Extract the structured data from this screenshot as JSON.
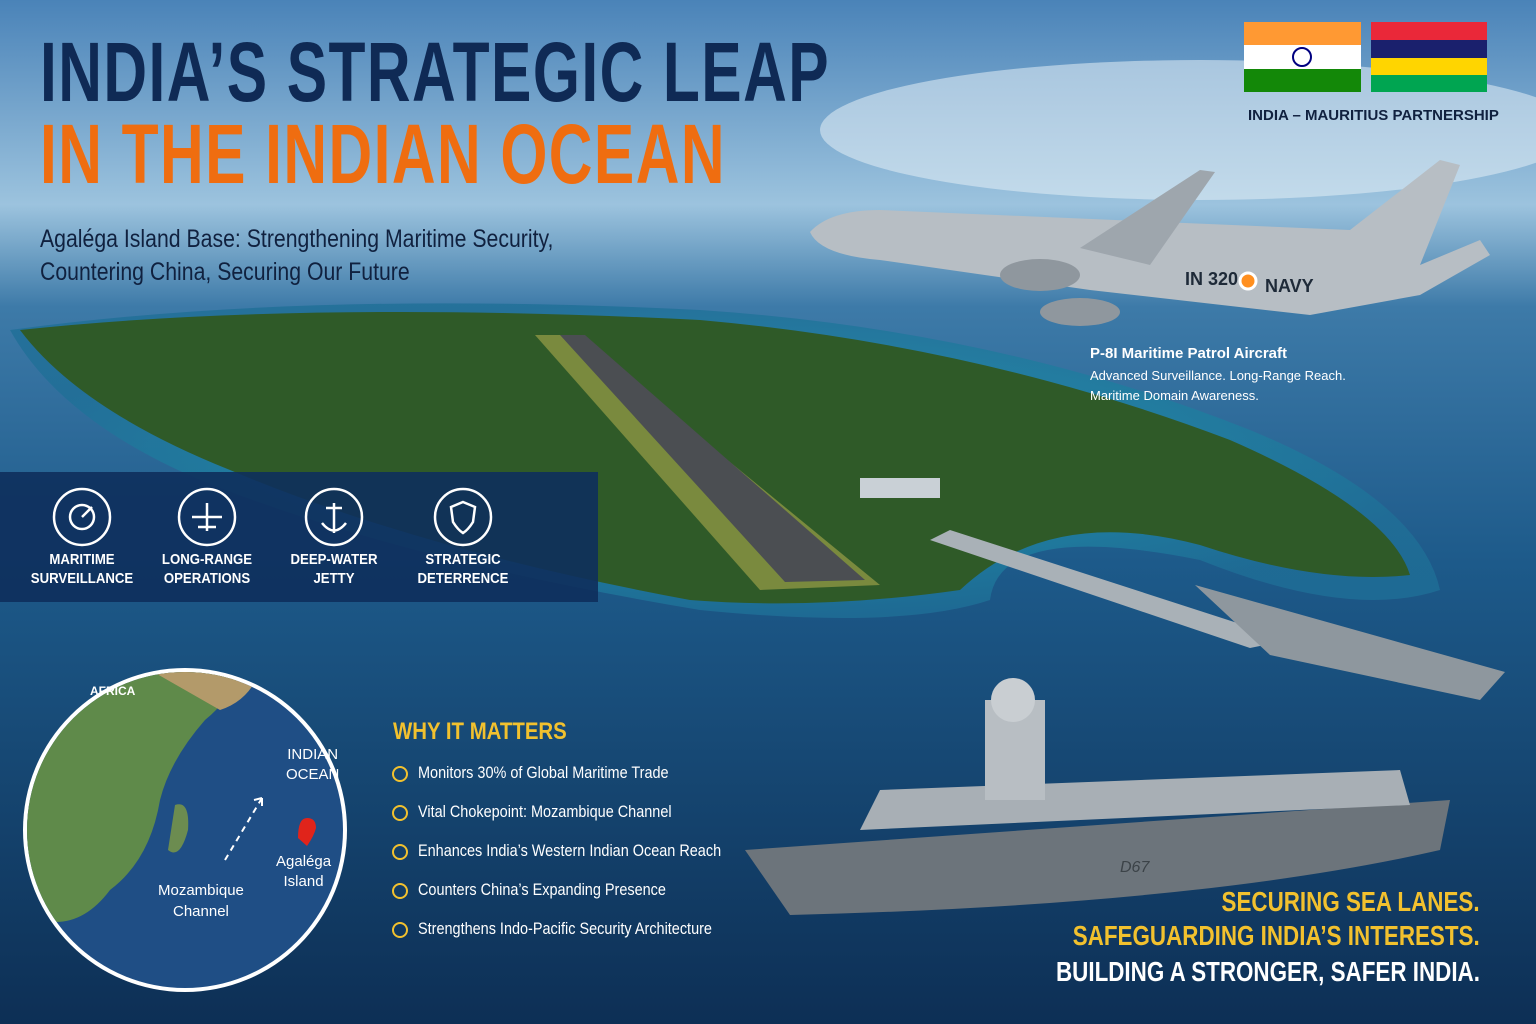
{
  "header": {
    "title_line1": "INDIA’S STRATEGIC LEAP",
    "title_line2": "IN THE INDIAN OCEAN",
    "subtitle_lines": [
      "Agaléga Island Base: Strengthening Maritime Security,",
      "Countering China, Securing Our Future"
    ]
  },
  "partnership": {
    "label": "INDIA – MAURITIUS PARTNERSHIP"
  },
  "aircraft": {
    "markings": [
      "IN 320",
      "NAVY"
    ],
    "caption": "P-8I Maritime Patrol Aircraft",
    "details": [
      "Advanced Surveillance. Long-Range Reach.",
      "Maritime Domain Awareness."
    ]
  },
  "ship": {
    "marking": "D67"
  },
  "features": [
    {
      "lines": [
        "MARITIME",
        "SURVEILLANCE"
      ]
    },
    {
      "lines": [
        "LONG-RANGE",
        "OPERATIONS"
      ]
    },
    {
      "lines": [
        "DEEP-WATER",
        "JETTY"
      ]
    },
    {
      "lines": [
        "STRATEGIC",
        "DETERRENCE"
      ]
    }
  ],
  "map": {
    "africa": "AFRICA",
    "ocean": [
      "INDIAN",
      "OCEAN"
    ],
    "island": [
      "Agaléga",
      "Island"
    ],
    "channel": [
      "Mozambique",
      "Channel"
    ]
  },
  "why": {
    "heading": "WHY IT MATTERS",
    "items": [
      "Monitors 30% of Global Maritime Trade",
      "Vital Chokepoint: Mozambique Channel",
      "Enhances India’s Western Indian Ocean Reach",
      "Counters China’s Expanding Presence",
      "Strengthens Indo-Pacific Security Architecture"
    ]
  },
  "closing": [
    "SECURING SEA LANES.",
    "SAFEGUARDING INDIA’S INTERESTS.",
    "BUILDING A STRONGER, SAFER INDIA."
  ]
}
